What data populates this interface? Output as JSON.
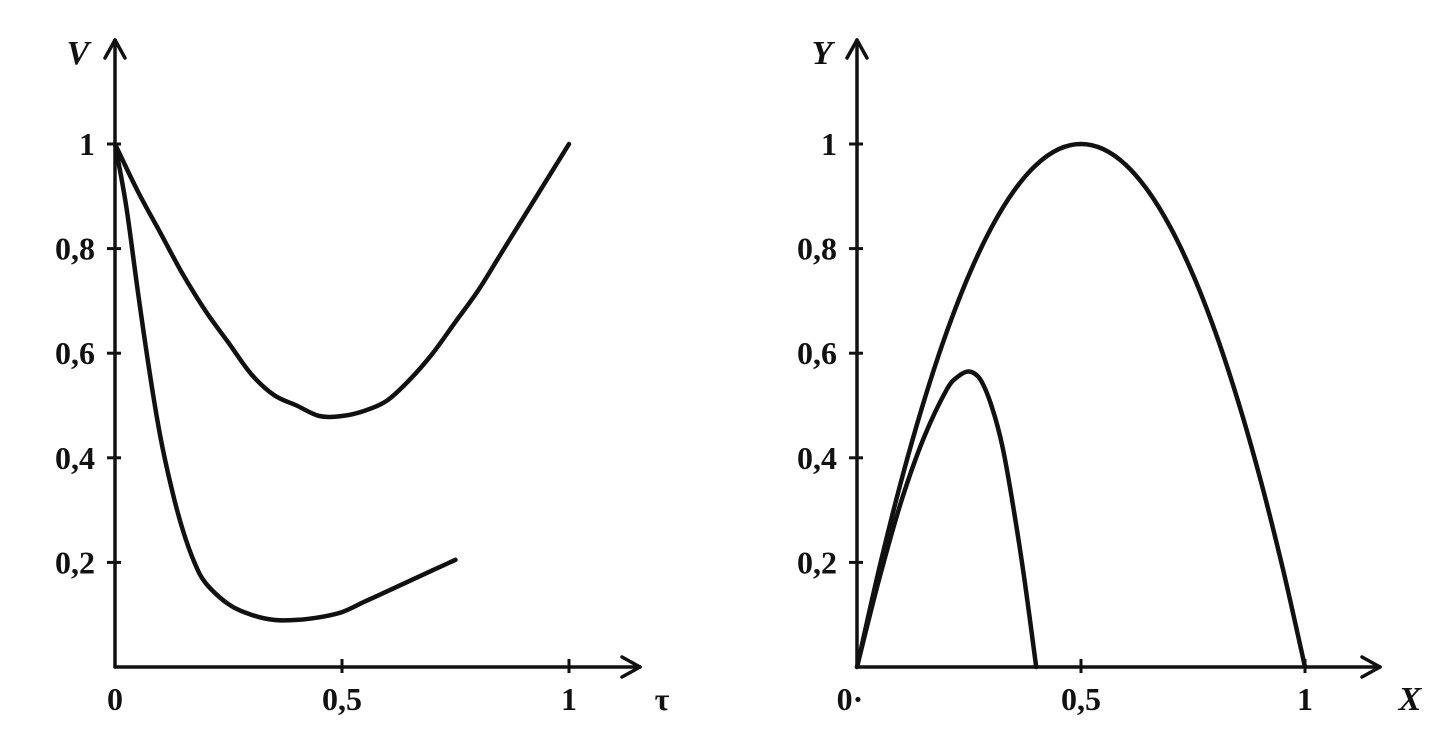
{
  "chart_data": [
    {
      "type": "line",
      "title": "",
      "xlabel": "τ",
      "ylabel": "V",
      "xlim": [
        0,
        1.2
      ],
      "ylim": [
        0,
        1.15
      ],
      "origin_label": "0",
      "x_ticks": [
        {
          "value": 0.5,
          "label": "0,5"
        },
        {
          "value": 1,
          "label": "1"
        }
      ],
      "y_ticks": [
        {
          "value": 0.2,
          "label": "0,2"
        },
        {
          "value": 0.4,
          "label": "0,4"
        },
        {
          "value": 0.6,
          "label": "0,6"
        },
        {
          "value": 0.8,
          "label": "0,8"
        },
        {
          "value": 1,
          "label": "1"
        }
      ],
      "grid": false,
      "series": [
        {
          "x": [
            0,
            0.05,
            0.1,
            0.15,
            0.2,
            0.25,
            0.3,
            0.35,
            0.4,
            0.45,
            0.5,
            0.55,
            0.6,
            0.65,
            0.7,
            0.75,
            0.8,
            0.85,
            0.9,
            0.95,
            1.0
          ],
          "y": [
            1.0,
            0.91,
            0.83,
            0.75,
            0.68,
            0.62,
            0.56,
            0.52,
            0.5,
            0.48,
            0.48,
            0.49,
            0.51,
            0.55,
            0.6,
            0.66,
            0.72,
            0.79,
            0.86,
            0.93,
            1.0
          ]
        },
        {
          "x": [
            0,
            0.025,
            0.05,
            0.075,
            0.1,
            0.125,
            0.15,
            0.175,
            0.2,
            0.25,
            0.3,
            0.35,
            0.4,
            0.45,
            0.5,
            0.55,
            0.6,
            0.65,
            0.7,
            0.75
          ],
          "y": [
            1.0,
            0.88,
            0.72,
            0.57,
            0.44,
            0.34,
            0.26,
            0.2,
            0.16,
            0.12,
            0.1,
            0.09,
            0.09,
            0.095,
            0.105,
            0.125,
            0.145,
            0.165,
            0.185,
            0.205
          ]
        }
      ]
    },
    {
      "type": "line",
      "title": "",
      "xlabel": "X",
      "ylabel": "Y",
      "xlim": [
        0,
        1.2
      ],
      "ylim": [
        0,
        1.15
      ],
      "origin_label": "0·",
      "x_ticks": [
        {
          "value": 0.5,
          "label": "0,5"
        },
        {
          "value": 1,
          "label": "1"
        }
      ],
      "y_ticks": [
        {
          "value": 0.2,
          "label": "0,2"
        },
        {
          "value": 0.4,
          "label": "0,4"
        },
        {
          "value": 0.6,
          "label": "0,6"
        },
        {
          "value": 0.8,
          "label": "0,8"
        },
        {
          "value": 1,
          "label": "1"
        }
      ],
      "grid": false,
      "series": [
        {
          "x": [
            0,
            0.05,
            0.1,
            0.15,
            0.2,
            0.25,
            0.3,
            0.35,
            0.4,
            0.45,
            0.5,
            0.55,
            0.6,
            0.65,
            0.7,
            0.75,
            0.8,
            0.85,
            0.9,
            0.95,
            1.0
          ],
          "y": [
            0,
            0.19,
            0.36,
            0.51,
            0.64,
            0.75,
            0.84,
            0.91,
            0.96,
            0.99,
            1.0,
            0.99,
            0.96,
            0.91,
            0.84,
            0.75,
            0.64,
            0.51,
            0.36,
            0.19,
            0
          ]
        },
        {
          "x": [
            0,
            0.05,
            0.1,
            0.15,
            0.2,
            0.225,
            0.25,
            0.275,
            0.3,
            0.325,
            0.35,
            0.375,
            0.4
          ],
          "y": [
            0,
            0.17,
            0.32,
            0.44,
            0.53,
            0.555,
            0.565,
            0.55,
            0.5,
            0.42,
            0.3,
            0.16,
            0
          ]
        }
      ]
    }
  ]
}
